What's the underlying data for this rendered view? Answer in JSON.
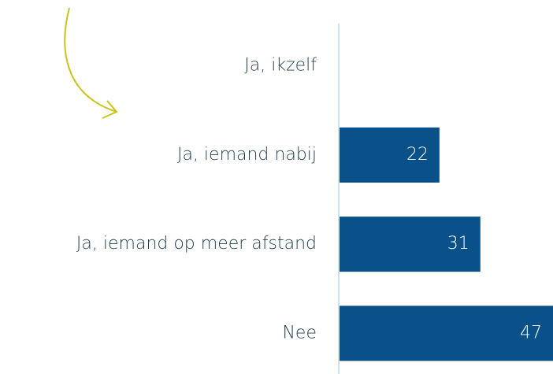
{
  "chart_data": {
    "type": "hbar",
    "categories": [
      "Ja, ikzelf",
      "Ja, iemand nabij",
      "Ja, iemand op meer afstand",
      "Nee"
    ],
    "values": [
      null,
      22,
      31,
      47
    ],
    "color": "#0a5189"
  }
}
